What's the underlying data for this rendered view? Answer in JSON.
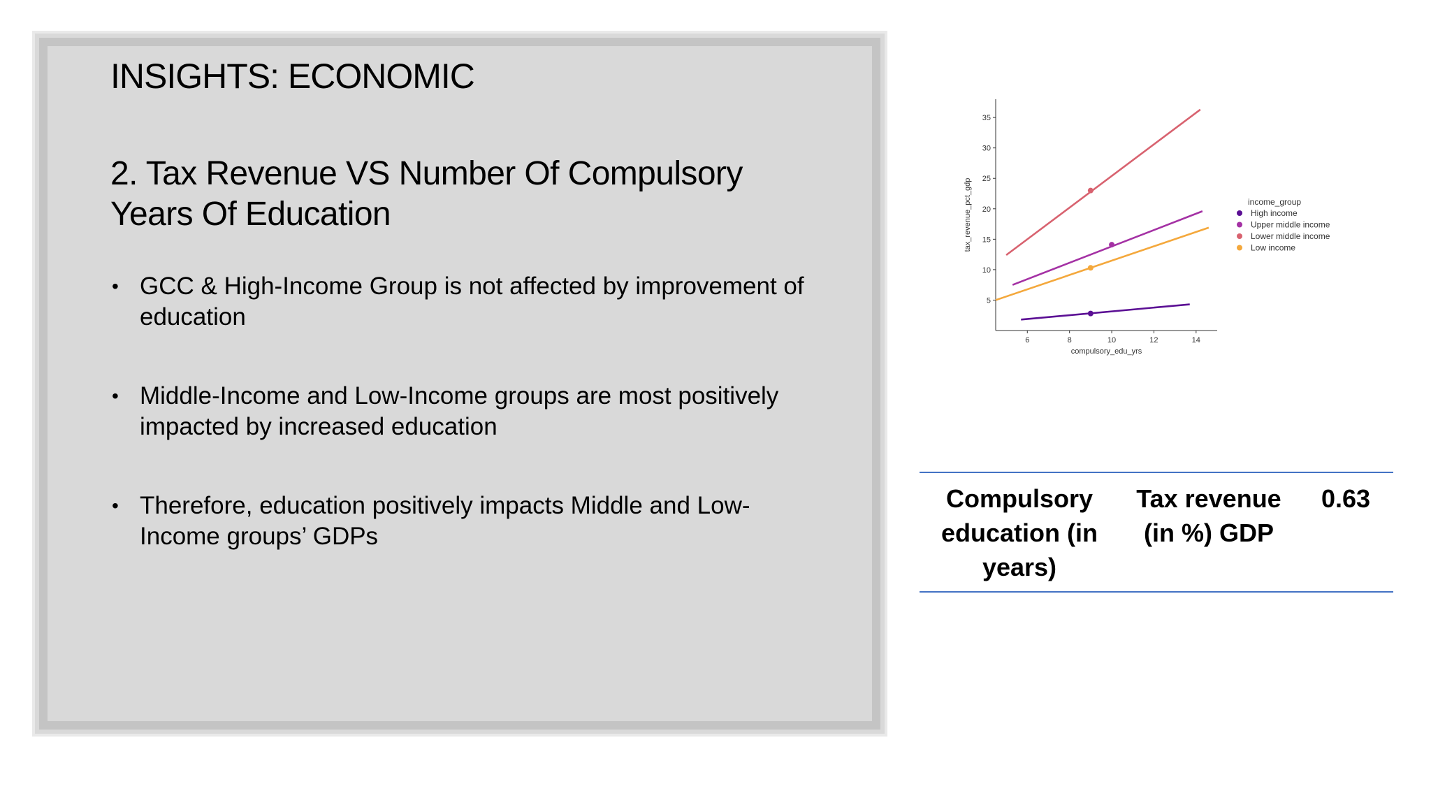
{
  "slide": {
    "title": "INSIGHTS: ECONOMIC",
    "subtitle": "2. Tax Revenue VS Number Of Compulsory Years Of Education",
    "bullets": [
      "GCC & High-Income Group is not affected by improvement of education",
      "Middle-Income and Low-Income groups are most positively impacted by increased education",
      "Therefore, education positively impacts Middle and Low-Income groups’ GDPs"
    ]
  },
  "table": {
    "col1": "Compulsory education (in years)",
    "col2": "Tax revenue (in %) GDP",
    "col3": "0.63"
  },
  "chart_data": {
    "type": "line",
    "title": "",
    "xlabel": "compulsory_edu_yrs",
    "ylabel": "tax_revenue_pct_gdp",
    "xlim": [
      4.5,
      15
    ],
    "ylim": [
      0,
      38
    ],
    "xticks": [
      6,
      8,
      10,
      12,
      14
    ],
    "yticks": [
      5,
      10,
      15,
      20,
      25,
      30,
      35
    ],
    "grid": false,
    "legend_title": "income_group",
    "legend_position": "right",
    "series": [
      {
        "name": "High income",
        "color": "#5b0f94",
        "x": [
          5.7,
          13.7
        ],
        "y": [
          1.8,
          4.3
        ],
        "marker": [
          9,
          2.8
        ]
      },
      {
        "name": "Upper middle income",
        "color": "#a431a4",
        "x": [
          5.3,
          14.3
        ],
        "y": [
          7.5,
          19.6
        ],
        "marker": [
          10,
          14.1
        ]
      },
      {
        "name": "Lower middle income",
        "color": "#d8626f",
        "x": [
          5.0,
          14.2
        ],
        "y": [
          12.4,
          36.3
        ],
        "marker": [
          9,
          23.0
        ]
      },
      {
        "name": "Low income",
        "color": "#f4a83c",
        "x": [
          4.5,
          14.6
        ],
        "y": [
          5.0,
          16.9
        ],
        "marker": [
          9,
          10.3
        ]
      }
    ]
  }
}
